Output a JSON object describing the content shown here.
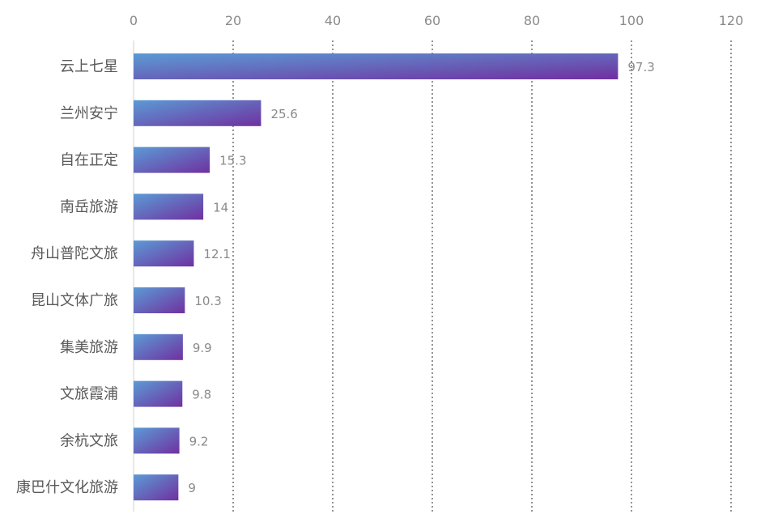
{
  "chart_data": {
    "type": "bar",
    "orientation": "horizontal",
    "categories": [
      "云上七星",
      "兰州安宁",
      "自在正定",
      "南岳旅游",
      "舟山普陀文旅",
      "昆山文体广旅",
      "集美旅游",
      "文旅霞浦",
      "余杭文旅",
      "康巴什文化旅游"
    ],
    "values": [
      97.3,
      25.6,
      15.3,
      14,
      12.1,
      10.3,
      9.9,
      9.8,
      9.2,
      9
    ],
    "value_labels": [
      "97.3",
      "25.6",
      "15.3",
      "14",
      "12.1",
      "10.3",
      "9.9",
      "9.8",
      "9.2",
      "9"
    ],
    "xlim": [
      0,
      120
    ],
    "xticks": [
      0,
      20,
      40,
      60,
      80,
      100,
      120
    ],
    "xtick_labels": [
      "0",
      "20",
      "40",
      "60",
      "80",
      "100",
      "120"
    ],
    "x_axis_position": "top",
    "grid": "vertical-dotted",
    "legend": "none",
    "colors": {
      "bar_gradient_start": "#5b9bd5",
      "bar_gradient_end": "#7030a0"
    }
  }
}
